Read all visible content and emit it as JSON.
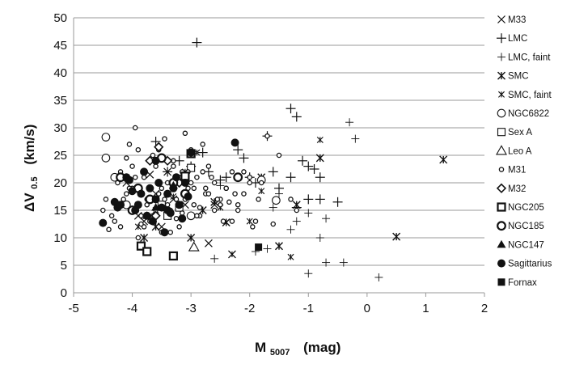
{
  "chart_data": {
    "type": "scatter",
    "title": "",
    "xlabel": {
      "main": "M",
      "sub": "5007",
      "unit": "(mag)"
    },
    "ylabel": {
      "main": "ΔV",
      "sub": "0.5",
      "unit": "(km/s)"
    },
    "xlim": [
      -5,
      2
    ],
    "ylim": [
      0,
      50
    ],
    "xticks": [
      -5,
      -4,
      -3,
      -2,
      -1,
      0,
      1,
      2
    ],
    "yticks": [
      0,
      5,
      10,
      15,
      20,
      25,
      30,
      35,
      40,
      45,
      50
    ],
    "grid": "horizontal",
    "legend_position": "right",
    "series": [
      {
        "name": "M33",
        "marker": "x",
        "x": [
          -4.1,
          -3.9,
          -3.7,
          -3.6,
          -3.5,
          -3.3,
          -3.1,
          -2.7,
          -2.6,
          -2.3,
          -3.8,
          -3.4
        ],
        "y": [
          20,
          14,
          21.5,
          18,
          12,
          17,
          16,
          9,
          16,
          7,
          13,
          22
        ]
      },
      {
        "name": "LMC",
        "marker": "plus",
        "x": [
          -2.9,
          -3.6,
          -2.8,
          -2.2,
          -2.1,
          -1.7,
          -1.6,
          -1.3,
          -1.2,
          -1.1,
          -1.0,
          -0.9,
          -0.8,
          -1.2,
          -1.5,
          -1.9,
          -2.5,
          -2.7,
          -3.0,
          -3.2,
          -3.4,
          -2.4,
          -1.3,
          -1.0,
          -0.8,
          -0.5,
          -2.0
        ],
        "y": [
          45.5,
          27.5,
          25.5,
          26,
          24.5,
          28.5,
          22,
          33.5,
          32,
          24,
          23,
          22.5,
          21,
          15.5,
          19,
          20,
          20.5,
          22,
          23,
          24,
          22,
          21,
          21,
          17,
          17,
          16.5,
          21
        ]
      },
      {
        "name": "LMC, faint",
        "marker": "plus-small",
        "x": [
          -0.3,
          -0.2,
          -0.7,
          -0.8,
          -1.0,
          -1.3,
          -1.6,
          -1.9,
          -2.6,
          -0.4,
          -0.7,
          0.2,
          -1.0,
          -1.2,
          -1.5,
          -1.7,
          -2.5
        ],
        "y": [
          31,
          28,
          5.5,
          10,
          3.5,
          11.5,
          15.5,
          7.5,
          6.2,
          5.5,
          13.5,
          2.8,
          14.5,
          13,
          18,
          8,
          19.5
        ]
      },
      {
        "name": "SMC",
        "marker": "asterisk",
        "x": [
          1.3,
          0.5,
          -0.8,
          -1.5,
          -1.8,
          -2.6,
          -2.4,
          -3.4,
          -3.6,
          -3.8,
          -1.2,
          -3.0,
          -2.8
        ],
        "y": [
          24.2,
          10.2,
          24.5,
          8.5,
          21,
          16.5,
          12.8,
          14,
          12,
          10,
          16,
          10,
          15
        ]
      },
      {
        "name": "SMC, faint",
        "marker": "asterisk-small",
        "x": [
          -0.8,
          -1.3,
          -1.8,
          -2.3,
          -2.9,
          -3.1,
          -3.3,
          -3.6,
          -2.0,
          -3.9,
          -2.5
        ],
        "y": [
          27.8,
          6.5,
          18.5,
          7,
          25.5,
          22,
          17.5,
          15,
          13,
          12,
          15.5
        ]
      },
      {
        "name": "NGC6822",
        "marker": "circle-open",
        "x": [
          -4.45,
          -4.45,
          -4.3,
          -1.8,
          -1.55,
          -4.1,
          -3.0
        ],
        "y": [
          28.3,
          24.5,
          21,
          20.5,
          16.8,
          16,
          14
        ]
      },
      {
        "name": "Sex A",
        "marker": "square-open",
        "x": [
          -3.0,
          -3.1,
          -3.2,
          -3.4,
          -3.5
        ],
        "y": [
          22.7,
          21,
          15.5,
          14,
          16
        ]
      },
      {
        "name": "Leo A",
        "marker": "triangle-open",
        "x": [
          -2.95
        ],
        "y": [
          8.3
        ]
      },
      {
        "name": "M31",
        "marker": "circle-small",
        "x": [
          -4.5,
          -4.4,
          -4.3,
          -4.25,
          -4.2,
          -4.15,
          -4.1,
          -4.05,
          -4.0,
          -3.95,
          -3.9,
          -3.85,
          -3.8,
          -3.75,
          -3.7,
          -3.65,
          -3.6,
          -3.55,
          -3.5,
          -3.45,
          -3.4,
          -3.35,
          -3.3,
          -3.25,
          -3.2,
          -3.15,
          -3.1,
          -3.05,
          -3.0,
          -2.95,
          -2.9,
          -2.85,
          -2.8,
          -2.75,
          -2.7,
          -2.6,
          -2.5,
          -2.4,
          -2.3,
          -2.2,
          -2.1,
          -2.0,
          -1.9,
          -1.85,
          -1.8,
          -1.7,
          -1.6,
          -1.5,
          -1.3,
          -1.2,
          -4.45,
          -4.35,
          -4.2,
          -4.1,
          -4.0,
          -3.9,
          -3.8,
          -3.7,
          -3.6,
          -3.5,
          -3.4,
          -3.3,
          -3.2,
          -3.1,
          -3.0,
          -2.9,
          -2.8,
          -2.7,
          -2.6,
          -2.5,
          -2.4,
          -2.3,
          -2.2,
          -2.1,
          -2.0,
          -4.05,
          -3.95,
          -3.85,
          -3.75,
          -3.65,
          -3.55,
          -3.45,
          -3.35,
          -3.25,
          -3.15,
          -3.05,
          -2.95,
          -2.85,
          -2.75,
          -2.65,
          -2.55,
          -2.45,
          -2.35,
          -2.25,
          -1.95
        ],
        "y": [
          15,
          11.5,
          13,
          20,
          22,
          17,
          24.5,
          27,
          19,
          30,
          26,
          14,
          21,
          16,
          13,
          25,
          23,
          18,
          11,
          28,
          20,
          15,
          24,
          17,
          12,
          22,
          29,
          19,
          26,
          16,
          21,
          14,
          27,
          18,
          23,
          20,
          16,
          19,
          22,
          15,
          18,
          21,
          13,
          17,
          20,
          28.5,
          12.5,
          25,
          17,
          15,
          17,
          14,
          12,
          18,
          23,
          10,
          12,
          24,
          15,
          19,
          16,
          23,
          21,
          17,
          20,
          14,
          22,
          18,
          15,
          17,
          19,
          13,
          16,
          22,
          20,
          19,
          21,
          12.5,
          17,
          14,
          26,
          17,
          11,
          13.5,
          14.5,
          22,
          19,
          15.5,
          19,
          21,
          17,
          13,
          16.5,
          18,
          12
        ]
      },
      {
        "name": "M32",
        "marker": "diamond-open",
        "x": [
          -3.7,
          -3.55,
          -3.4,
          -3.6,
          -3.2
        ],
        "y": [
          24,
          26.5,
          24,
          14,
          20
        ]
      },
      {
        "name": "NGC205",
        "marker": "square-open-bold",
        "x": [
          -3.85,
          -3.75,
          -3.3,
          -3.0,
          -3.1
        ],
        "y": [
          8.5,
          7.5,
          6.7,
          25.3,
          21.2
        ]
      },
      {
        "name": "NGC185",
        "marker": "circle-open-bold",
        "x": [
          -4.2,
          -3.7,
          -2.2,
          -3.9,
          -4.0,
          -3.5,
          -3.3,
          -3.1
        ],
        "y": [
          21,
          17,
          21,
          19,
          15,
          24.5,
          20,
          18
        ]
      },
      {
        "name": "NGC147",
        "marker": "triangle-filled",
        "x": [
          -3.6,
          -3.3,
          -3.75
        ],
        "y": [
          15.5,
          19.5,
          14
        ]
      },
      {
        "name": "Sagittarius",
        "marker": "circle-filled",
        "x": [
          -4.5,
          -4.3,
          -4.25,
          -4.1,
          -4.0,
          -3.9,
          -3.8,
          -3.75,
          -3.7,
          -3.65,
          -3.6,
          -3.55,
          -3.5,
          -3.45,
          -3.4,
          -3.35,
          -3.3,
          -3.25,
          -3.2,
          -3.15,
          -3.1,
          -3.05,
          -3.0,
          -2.25,
          -4.2,
          -4.05,
          -3.85,
          -3.95,
          -3.6,
          -3.4
        ],
        "y": [
          12.7,
          16.5,
          15.5,
          21,
          18.5,
          16,
          22,
          14,
          19,
          13,
          17,
          20,
          15.5,
          11,
          18,
          14.5,
          19,
          21,
          16,
          13.5,
          20,
          17.5,
          25.5,
          27.3,
          16,
          20.5,
          18,
          15,
          24,
          15
        ]
      },
      {
        "name": "Fornax",
        "marker": "square-filled",
        "x": [
          -1.85
        ],
        "y": [
          8.3
        ]
      }
    ]
  }
}
